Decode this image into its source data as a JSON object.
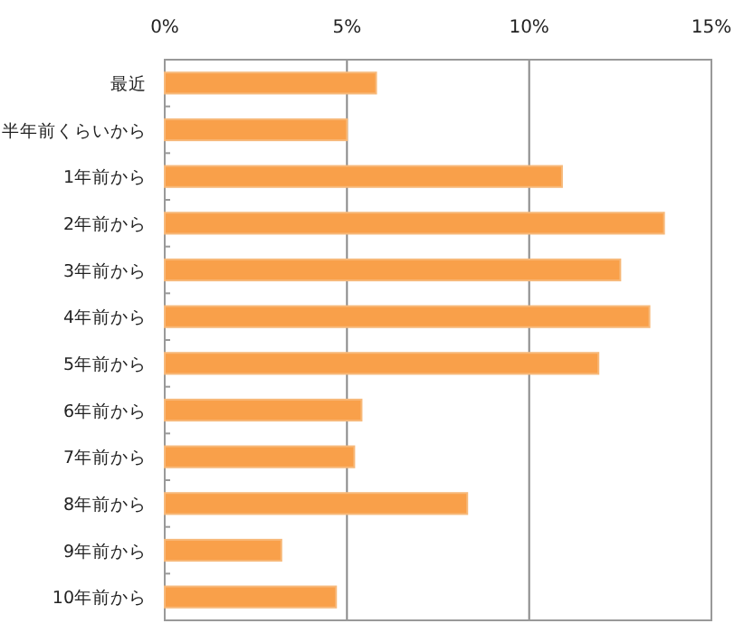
{
  "chart_data": {
    "type": "bar",
    "orientation": "horizontal",
    "categories": [
      "最近",
      "半年前くらいから",
      "1年前から",
      "2年前から",
      "3年前から",
      "4年前から",
      "5年前から",
      "6年前から",
      "7年前から",
      "8年前から",
      "9年前から",
      "10年前から"
    ],
    "values": [
      5.8,
      5.0,
      10.9,
      13.7,
      12.5,
      13.3,
      11.9,
      5.4,
      5.2,
      8.3,
      3.2,
      4.7
    ],
    "color": "#f9a04a",
    "xlim": [
      0,
      15
    ],
    "xticks": [
      {
        "value": 0,
        "label": "0%"
      },
      {
        "value": 5,
        "label": "5%"
      },
      {
        "value": 10,
        "label": "10%"
      },
      {
        "value": 15,
        "label": "15%"
      }
    ],
    "grid": "x"
  }
}
